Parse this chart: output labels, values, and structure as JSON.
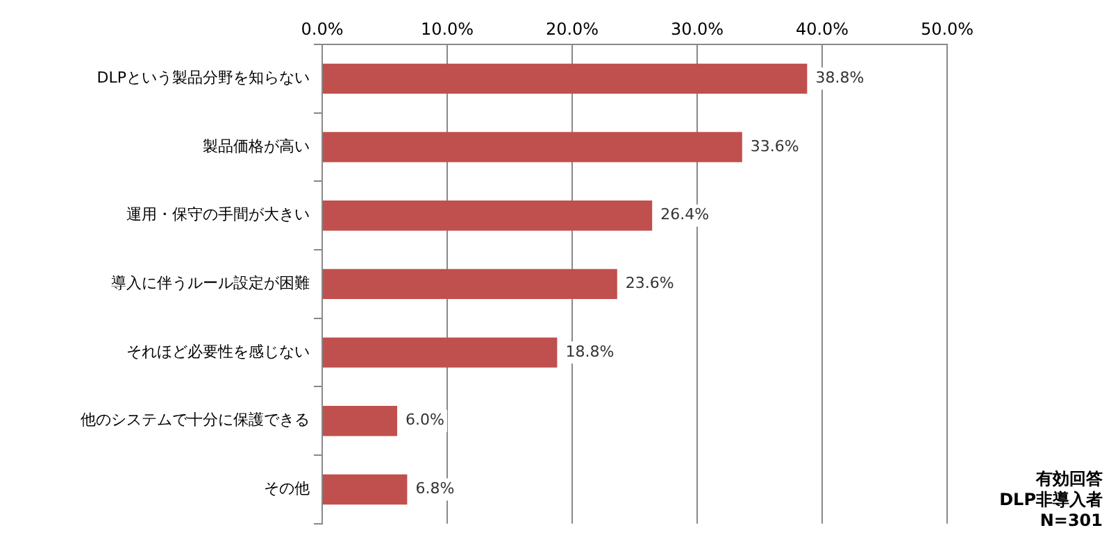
{
  "chart_data": {
    "type": "bar",
    "orientation": "horizontal",
    "categories": [
      "DLPという製品分野を知らない",
      "製品価格が高い",
      "運用・保守の手間が大きい",
      "導入に伴うルール設定が困難",
      "それほど必要性を感じない",
      "他のシステムで十分に保護できる",
      "その他"
    ],
    "values": [
      38.8,
      33.6,
      26.4,
      23.6,
      18.8,
      6.0,
      6.8
    ],
    "value_labels": [
      "38.8%",
      "33.6%",
      "26.4%",
      "23.6%",
      "18.8%",
      "6.0%",
      "6.8%"
    ],
    "color": "#c0504d",
    "xlim": [
      0,
      50
    ],
    "xticks": [
      {
        "value": 0,
        "label": "0.0%"
      },
      {
        "value": 10,
        "label": "10.0%"
      },
      {
        "value": 20,
        "label": "20.0%"
      },
      {
        "value": 30,
        "label": "30.0%"
      },
      {
        "value": 40,
        "label": "40.0%"
      },
      {
        "value": 50,
        "label": "50.0%"
      }
    ],
    "grid": "x",
    "annotations": [
      "有効回答",
      "DLP非導入者",
      "N=301"
    ]
  }
}
